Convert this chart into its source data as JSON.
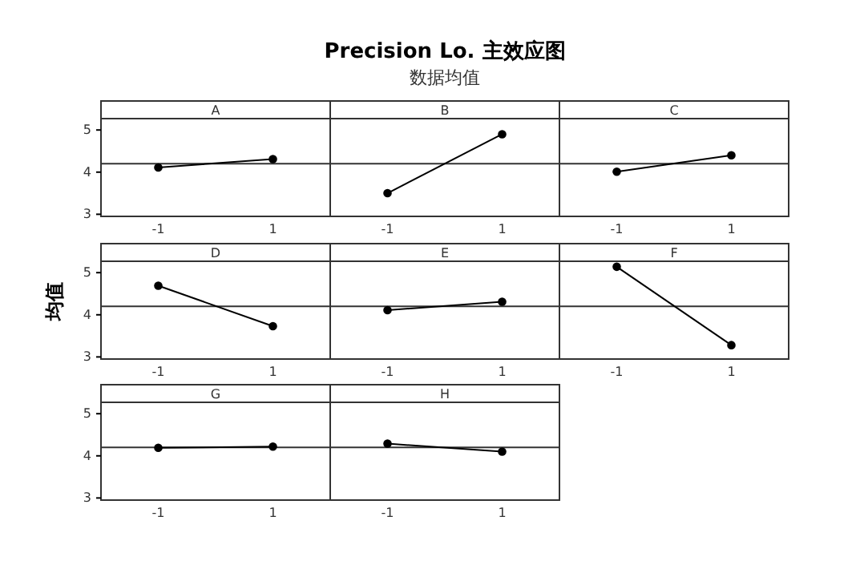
{
  "chart_data": [
    {
      "type": "line",
      "xlabel": "A",
      "categories": [
        "-1",
        "1"
      ],
      "values": [
        4.11,
        4.31
      ],
      "color": "#000000",
      "ylim": [
        2.95,
        5.27
      ],
      "yticks": [
        3,
        4,
        5
      ],
      "marker": "circle",
      "grid": false,
      "ref_lines": [
        {
          "axis": "y",
          "value": 4.2
        }
      ]
    },
    {
      "type": "line",
      "title": "Precision Lo. 主效应图",
      "subtitle": "数据均值",
      "xlabel": "B",
      "categories": [
        "-1",
        "1"
      ],
      "values": [
        3.5,
        4.9
      ],
      "color": "#000000",
      "ylim": [
        2.95,
        5.27
      ],
      "marker": "circle",
      "grid": false,
      "tick_labels": "x",
      "ref_lines": [
        {
          "axis": "y",
          "value": 4.2
        }
      ]
    },
    {
      "type": "line",
      "xlabel": "C",
      "categories": [
        "-1",
        "1"
      ],
      "values": [
        4.01,
        4.4
      ],
      "color": "#000000",
      "ylim": [
        2.95,
        5.27
      ],
      "marker": "circle",
      "grid": false,
      "tick_labels": "x",
      "ref_lines": [
        {
          "axis": "y",
          "value": 4.2
        }
      ]
    },
    {
      "type": "line",
      "ylabel": "均值",
      "xlabel": "D",
      "categories": [
        "-1",
        "1"
      ],
      "values": [
        4.69,
        3.73
      ],
      "color": "#000000",
      "ylim": [
        2.95,
        5.27
      ],
      "yticks": [
        3,
        4,
        5
      ],
      "marker": "circle",
      "grid": false,
      "ref_lines": [
        {
          "axis": "y",
          "value": 4.2
        }
      ]
    },
    {
      "type": "line",
      "xlabel": "E",
      "categories": [
        "-1",
        "1"
      ],
      "values": [
        4.11,
        4.31
      ],
      "color": "#000000",
      "ylim": [
        2.95,
        5.27
      ],
      "marker": "circle",
      "grid": false,
      "tick_labels": "x",
      "ref_lines": [
        {
          "axis": "y",
          "value": 4.2
        }
      ]
    },
    {
      "type": "line",
      "xlabel": "F",
      "categories": [
        "-1",
        "1"
      ],
      "values": [
        5.14,
        3.28
      ],
      "color": "#000000",
      "ylim": [
        2.95,
        5.27
      ],
      "marker": "circle",
      "grid": false,
      "tick_labels": "x",
      "ref_lines": [
        {
          "axis": "y",
          "value": 4.2
        }
      ]
    },
    {
      "type": "line",
      "xlabel": "G",
      "categories": [
        "-1",
        "1"
      ],
      "values": [
        4.19,
        4.22
      ],
      "color": "#000000",
      "ylim": [
        2.95,
        5.27
      ],
      "yticks": [
        3,
        4,
        5
      ],
      "marker": "circle",
      "grid": false,
      "ref_lines": [
        {
          "axis": "y",
          "value": 4.2
        }
      ]
    },
    {
      "type": "line",
      "xlabel": "H",
      "categories": [
        "-1",
        "1"
      ],
      "values": [
        4.29,
        4.1
      ],
      "color": "#000000",
      "ylim": [
        2.95,
        5.27
      ],
      "marker": "circle",
      "grid": false,
      "tick_labels": "x",
      "ref_lines": [
        {
          "axis": "y",
          "value": 4.2
        }
      ]
    }
  ]
}
